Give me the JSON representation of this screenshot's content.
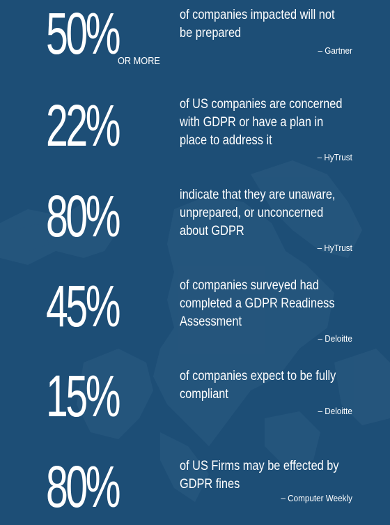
{
  "background_color": "#1d4e76",
  "stats": [
    {
      "number": "50%",
      "suffix": "OR MORE",
      "lines": [
        "of companies impacted will not",
        "be prepared"
      ],
      "source": "– Gartner"
    },
    {
      "number": "22%",
      "lines": [
        "of US companies are concerned",
        "with GDPR or have a plan in",
        "place to address it"
      ],
      "source": "– HyTrust"
    },
    {
      "number": "80%",
      "lines": [
        "indicate that they are unaware,",
        "unprepared, or unconcerned",
        "about GDPR"
      ],
      "source": "– HyTrust"
    },
    {
      "number": "45%",
      "lines": [
        "of companies surveyed had",
        "completed a GDPR Readiness",
        "Assessment"
      ],
      "source": "– Deloitte"
    },
    {
      "number": "15%",
      "lines": [
        "of companies expect to be fully",
        "compliant"
      ],
      "source": "– Deloitte"
    },
    {
      "number": "80%",
      "lines": [
        "of US Firms may be effected by",
        "GDPR fines"
      ],
      "source": "– Computer Weekly"
    }
  ]
}
